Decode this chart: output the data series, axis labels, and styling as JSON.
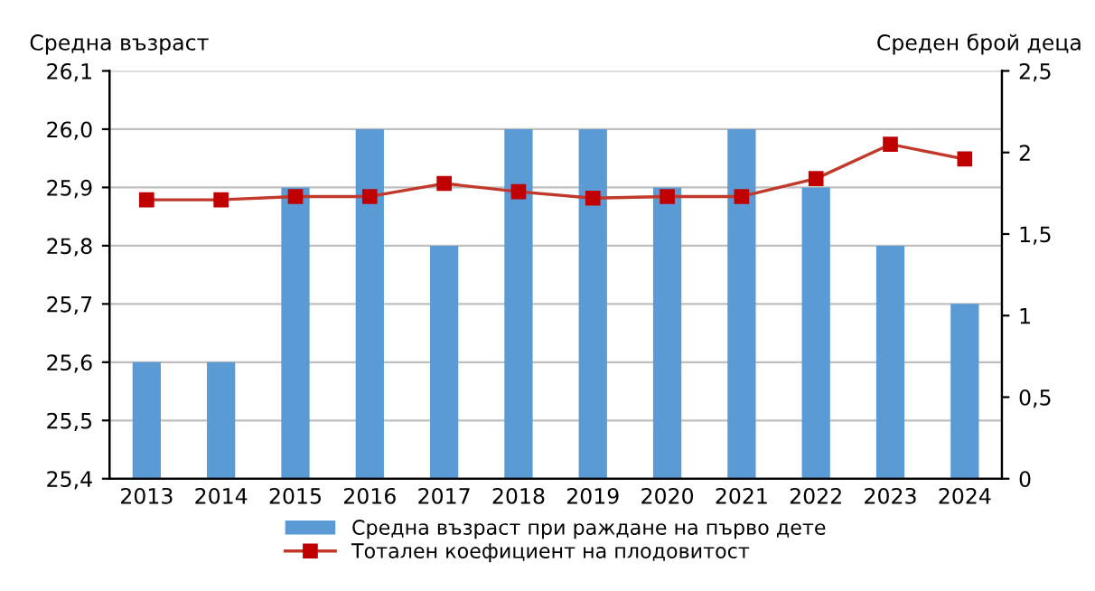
{
  "chart_data": {
    "type": "bar",
    "ylabel": "Средна възраст",
    "y2label": "Среден брой деца",
    "categories": [
      "2013",
      "2014",
      "2015",
      "2016",
      "2017",
      "2018",
      "2019",
      "2020",
      "2021",
      "2022",
      "2023",
      "2024"
    ],
    "series": [
      {
        "name": "Средна възраст при раждане на първо дете",
        "color": "#5b9bd5",
        "values": [
          25.6,
          25.6,
          25.9,
          26.0,
          25.8,
          26.0,
          26.0,
          25.9,
          26.0,
          25.9,
          25.8,
          25.7
        ]
      },
      {
        "name": "Тотален коефициент на плодовитост",
        "type": "line",
        "axis": "y2",
        "color": "#c0392b",
        "marker": "square",
        "values": [
          1.71,
          1.71,
          1.73,
          1.73,
          1.81,
          1.76,
          1.72,
          1.73,
          1.73,
          1.84,
          2.05,
          1.96
        ]
      }
    ],
    "ylim": [
      25.4,
      26.1
    ],
    "yticks": [
      {
        "value": 25.4,
        "label": "25,4"
      },
      {
        "value": 25.5,
        "label": "25,5"
      },
      {
        "value": 25.6,
        "label": "25,6"
      },
      {
        "value": 25.7,
        "label": "25,7"
      },
      {
        "value": 25.8,
        "label": "25,8"
      },
      {
        "value": 25.9,
        "label": "25,9"
      },
      {
        "value": 26.0,
        "label": "26,0"
      },
      {
        "value": 26.1,
        "label": "26,1"
      }
    ],
    "y2lim": [
      0,
      2.5
    ],
    "y2ticks": [
      0,
      {
        "value": 0.5,
        "label": "0,5"
      },
      1,
      {
        "value": 1.5,
        "label": "1,5"
      },
      2,
      {
        "value": 2.5,
        "label": "2,5"
      }
    ],
    "grid": "y",
    "legend": "bottom"
  }
}
